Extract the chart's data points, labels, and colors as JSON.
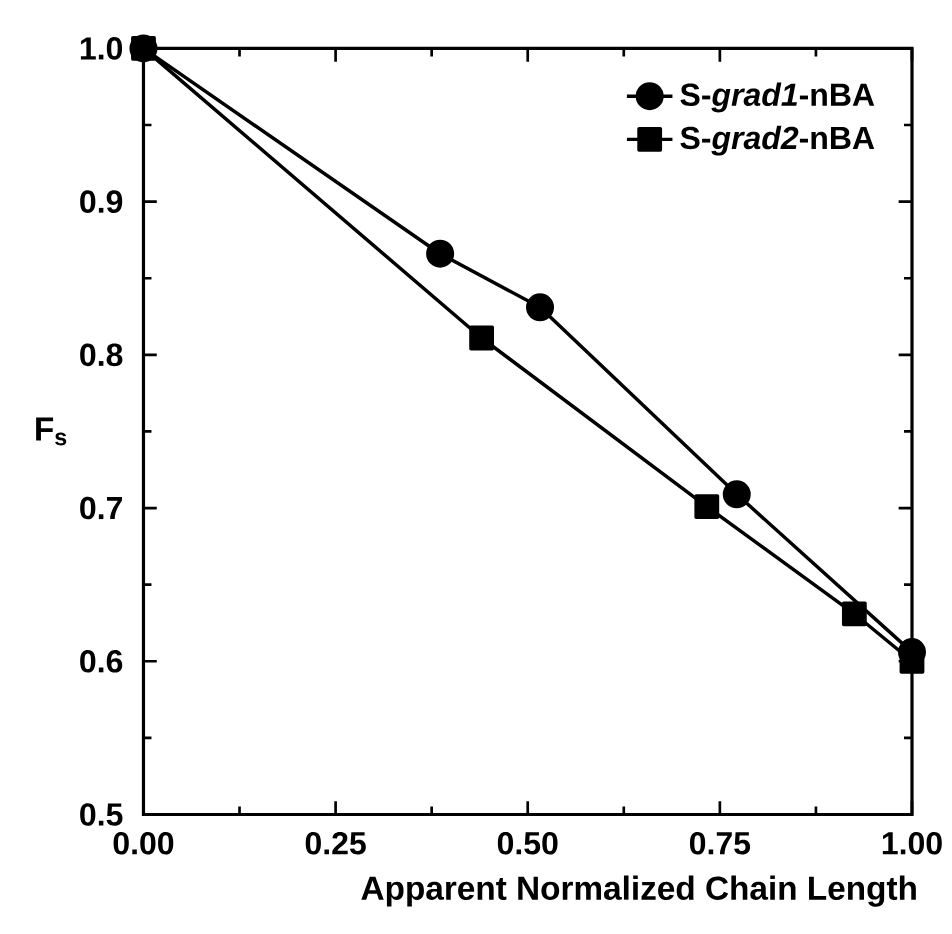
{
  "chart_data": {
    "type": "line",
    "xlabel": "Apparent Normalized Chain Length",
    "ylabel": "F$_{s}$",
    "xlim": [
      0,
      1
    ],
    "ylim": [
      0.5,
      1.0
    ],
    "xticks": [
      {
        "value": 0,
        "label": "0.00"
      },
      {
        "value": 0.25,
        "label": "0.25"
      },
      {
        "value": 0.5,
        "label": "0.50"
      },
      {
        "value": 0.75,
        "label": "0.75"
      },
      {
        "value": 1,
        "label": "1.00"
      }
    ],
    "yticks": [
      {
        "value": 0.5,
        "label": "0.5"
      },
      {
        "value": 0.6,
        "label": "0.6"
      },
      {
        "value": 0.7,
        "label": "0.7"
      },
      {
        "value": 0.8,
        "label": "0.8"
      },
      {
        "value": 0.9,
        "label": "0.9"
      },
      {
        "value": 1.0,
        "label": "1.0"
      }
    ],
    "legend": "top right",
    "grid": false,
    "line_style": "solid",
    "series": [
      {
        "name": "S-*grad1*-nBA",
        "color": "#000000",
        "marker": "circle",
        "x": [
          0,
          0.386,
          0.516,
          0.772,
          1.0
        ],
        "values": [
          1.0,
          0.866,
          0.831,
          0.709,
          0.606
        ]
      },
      {
        "name": "S-*grad2*-nBA",
        "color": "#000000",
        "marker": "square",
        "x": [
          0,
          0.44,
          0.733,
          0.925,
          1.0
        ],
        "values": [
          1.0,
          0.811,
          0.701,
          0.631,
          0.6
        ]
      }
    ]
  }
}
